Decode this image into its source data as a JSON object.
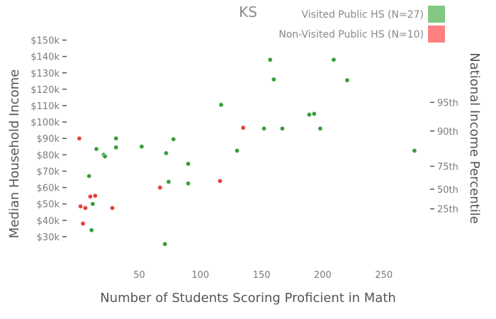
{
  "chart_data": {
    "type": "scatter",
    "title": "KS",
    "xlabel": "Number of Students Scoring Proficient in Math",
    "ylabel": "Median Household Income",
    "y2label": "National Income Percentile",
    "xlim": [
      -3,
      282
    ],
    "ylim": [
      20000,
      155000
    ],
    "xticks": [
      50,
      100,
      150,
      200,
      250
    ],
    "yticks": [
      {
        "value": 30000,
        "label": "$30k"
      },
      {
        "value": 40000,
        "label": "$40k"
      },
      {
        "value": 50000,
        "label": "$50k"
      },
      {
        "value": 60000,
        "label": "$60k"
      },
      {
        "value": 70000,
        "label": "$70k"
      },
      {
        "value": 80000,
        "label": "$80k"
      },
      {
        "value": 90000,
        "label": "$90k"
      },
      {
        "value": 100000,
        "label": "$100k"
      },
      {
        "value": 110000,
        "label": "$110k"
      },
      {
        "value": 120000,
        "label": "$120k"
      },
      {
        "value": 130000,
        "label": "$130k"
      },
      {
        "value": 140000,
        "label": "$140k"
      },
      {
        "value": 150000,
        "label": "$150k"
      }
    ],
    "y2ticks": [
      {
        "value": 47000,
        "label": "25th"
      },
      {
        "value": 59000,
        "label": "50th"
      },
      {
        "value": 73000,
        "label": "75th"
      },
      {
        "value": 94500,
        "label": "90th"
      },
      {
        "value": 112000,
        "label": "95th"
      }
    ],
    "grid": false,
    "legend_position": "top-right",
    "series": [
      {
        "name": "Visited Public HS (N=27)",
        "color": "#3a9e3a",
        "legend_color": "#82c882",
        "points": [
          {
            "x": 9,
            "y": 67000
          },
          {
            "x": 11,
            "y": 34000
          },
          {
            "x": 12,
            "y": 50000
          },
          {
            "x": 15,
            "y": 83500
          },
          {
            "x": 21,
            "y": 80000
          },
          {
            "x": 22,
            "y": 79000
          },
          {
            "x": 31,
            "y": 90000
          },
          {
            "x": 31,
            "y": 84500
          },
          {
            "x": 52,
            "y": 85000
          },
          {
            "x": 71,
            "y": 25500
          },
          {
            "x": 72,
            "y": 81000
          },
          {
            "x": 74,
            "y": 63500
          },
          {
            "x": 78,
            "y": 89500
          },
          {
            "x": 90,
            "y": 74500
          },
          {
            "x": 90,
            "y": 62500
          },
          {
            "x": 117,
            "y": 110500
          },
          {
            "x": 130,
            "y": 82500
          },
          {
            "x": 152,
            "y": 96000
          },
          {
            "x": 157,
            "y": 138000
          },
          {
            "x": 160,
            "y": 126000
          },
          {
            "x": 167,
            "y": 96000
          },
          {
            "x": 189,
            "y": 104500
          },
          {
            "x": 193,
            "y": 105000
          },
          {
            "x": 198,
            "y": 96000
          },
          {
            "x": 209,
            "y": 138000
          },
          {
            "x": 220,
            "y": 125500
          },
          {
            "x": 275,
            "y": 82500
          }
        ]
      },
      {
        "name": "Non-Visited Public HS (N=10)",
        "color": "#e8403c",
        "legend_color": "#ff8080",
        "points": [
          {
            "x": 1,
            "y": 90000
          },
          {
            "x": 2,
            "y": 48500
          },
          {
            "x": 4,
            "y": 38000
          },
          {
            "x": 6,
            "y": 47500
          },
          {
            "x": 10,
            "y": 54500
          },
          {
            "x": 14,
            "y": 55000
          },
          {
            "x": 28,
            "y": 47500
          },
          {
            "x": 67,
            "y": 60000
          },
          {
            "x": 116,
            "y": 64000
          },
          {
            "x": 135,
            "y": 96500
          }
        ]
      }
    ]
  }
}
